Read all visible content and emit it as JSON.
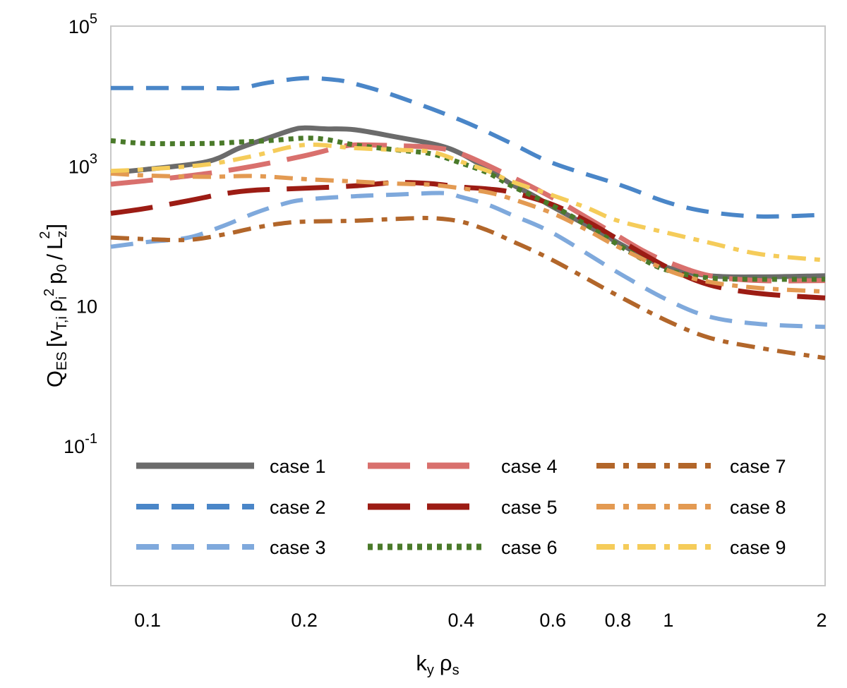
{
  "chart_data": {
    "type": "line",
    "x_scale": "log",
    "y_scale": "log",
    "xlim": [
      0.085,
      2.0
    ],
    "ylim": [
      0.001,
      100000
    ],
    "xlabel": {
      "main": "k",
      "main_sub": "y",
      "second": "ρ",
      "second_sub": "s"
    },
    "ylabel": {
      "q": "Q",
      "q_sub": "ES",
      "v": "v",
      "v_sub": "T,i",
      "rho": "ρ",
      "rho_sub": "i",
      "rho_sup": "2",
      "p": "p",
      "p_sub": "0",
      "slash": "/",
      "L": "L",
      "L_sub": "z",
      "L_sup": "2"
    },
    "x_ticks": [
      {
        "value": 0.1,
        "label": "0.1"
      },
      {
        "value": 0.2,
        "label": "0.2"
      },
      {
        "value": 0.4,
        "label": "0.4"
      },
      {
        "value": 0.6,
        "label": "0.6"
      },
      {
        "value": 0.8,
        "label": "0.8"
      },
      {
        "value": 1.0,
        "label": "1"
      },
      {
        "value": 2.0,
        "label": "2"
      }
    ],
    "y_ticks": [
      {
        "value": 0.1,
        "base": "10",
        "exp": "-1"
      },
      {
        "value": 10,
        "base": "10",
        "exp": ""
      },
      {
        "value": 1000,
        "base": "10",
        "exp": "3"
      },
      {
        "value": 100000,
        "base": "10",
        "exp": "5"
      }
    ],
    "grid": false,
    "legend": "bottom-center",
    "series": [
      {
        "name": "case 1",
        "color": "#6b6b6b",
        "style": "solid",
        "x": [
          0.085,
          0.1,
          0.13,
          0.15,
          0.17,
          0.19,
          0.2,
          0.22,
          0.25,
          0.3,
          0.36,
          0.4,
          0.45,
          0.5,
          0.55,
          0.6,
          0.7,
          0.8,
          0.9,
          1.0,
          1.2,
          1.5,
          2.0
        ],
        "y": [
          800,
          900,
          1150,
          1800,
          2500,
          3300,
          3500,
          3400,
          3300,
          2600,
          2000,
          1500,
          900,
          550,
          380,
          260,
          140,
          80,
          50,
          35,
          27,
          26,
          27
        ]
      },
      {
        "name": "case 2",
        "color": "#4a86c8",
        "style": "dash",
        "x": [
          0.085,
          0.1,
          0.13,
          0.15,
          0.17,
          0.2,
          0.23,
          0.25,
          0.3,
          0.4,
          0.5,
          0.6,
          0.8,
          1.0,
          1.2,
          1.5,
          2.0
        ],
        "y": [
          13000,
          13000,
          13000,
          13000,
          15500,
          18000,
          17000,
          15000,
          10000,
          4500,
          2100,
          1100,
          550,
          300,
          220,
          190,
          200
        ]
      },
      {
        "name": "case 3",
        "color": "#7fa9dc",
        "style": "dash",
        "x": [
          0.085,
          0.1,
          0.12,
          0.14,
          0.16,
          0.18,
          0.2,
          0.25,
          0.3,
          0.37,
          0.4,
          0.45,
          0.5,
          0.6,
          0.8,
          1.0,
          1.2,
          1.5,
          2.0
        ],
        "y": [
          70,
          82,
          95,
          140,
          210,
          280,
          330,
          370,
          390,
          410,
          360,
          280,
          200,
          110,
          30,
          12,
          7,
          5.5,
          5
        ]
      },
      {
        "name": "case 4",
        "color": "#d9706d",
        "style": "longdash",
        "x": [
          0.085,
          0.1,
          0.13,
          0.16,
          0.2,
          0.23,
          0.25,
          0.3,
          0.35,
          0.4,
          0.5,
          0.6,
          0.7,
          0.8,
          0.9,
          1.0,
          1.2,
          1.5,
          2.0
        ],
        "y": [
          550,
          620,
          780,
          1000,
          1400,
          1800,
          2000,
          1950,
          1850,
          1500,
          700,
          350,
          180,
          100,
          60,
          42,
          27,
          23,
          23
        ]
      },
      {
        "name": "case 5",
        "color": "#9c1c14",
        "style": "longdash",
        "x": [
          0.085,
          0.1,
          0.12,
          0.14,
          0.16,
          0.2,
          0.25,
          0.3,
          0.35,
          0.4,
          0.45,
          0.5,
          0.6,
          0.7,
          0.8,
          1.0,
          1.2,
          1.5,
          2.0
        ],
        "y": [
          210,
          250,
          320,
          400,
          450,
          480,
          520,
          580,
          560,
          500,
          470,
          420,
          280,
          160,
          90,
          35,
          20,
          15,
          13
        ]
      },
      {
        "name": "case 6",
        "color": "#4a7a2a",
        "style": "dotted",
        "x": [
          0.085,
          0.1,
          0.13,
          0.15,
          0.17,
          0.2,
          0.22,
          0.25,
          0.3,
          0.35,
          0.4,
          0.45,
          0.5,
          0.6,
          0.7,
          0.8,
          0.9,
          1.0,
          1.2,
          1.5,
          2.0
        ],
        "y": [
          2300,
          2100,
          2100,
          2200,
          2300,
          2500,
          2400,
          2000,
          1700,
          1500,
          1100,
          800,
          520,
          270,
          140,
          75,
          45,
          32,
          25,
          24,
          24
        ]
      },
      {
        "name": "case 7",
        "color": "#b2662a",
        "style": "dashdot",
        "x": [
          0.085,
          0.1,
          0.12,
          0.14,
          0.16,
          0.18,
          0.2,
          0.25,
          0.3,
          0.35,
          0.4,
          0.45,
          0.5,
          0.6,
          0.8,
          1.0,
          1.2,
          1.5,
          2.0
        ],
        "y": [
          95,
          90,
          88,
          105,
          130,
          150,
          160,
          165,
          175,
          180,
          160,
          120,
          85,
          45,
          14,
          6,
          3.5,
          2.5,
          1.8
        ]
      },
      {
        "name": "case 8",
        "color": "#e39a52",
        "style": "dashdot",
        "x": [
          0.085,
          0.1,
          0.13,
          0.16,
          0.2,
          0.25,
          0.3,
          0.35,
          0.4,
          0.45,
          0.5,
          0.6,
          0.7,
          0.8,
          1.0,
          1.2,
          1.5,
          2.0
        ],
        "y": [
          780,
          730,
          700,
          720,
          650,
          600,
          560,
          540,
          480,
          420,
          340,
          210,
          120,
          70,
          32,
          22,
          18,
          16
        ]
      },
      {
        "name": "case 9",
        "color": "#f5cc5a",
        "style": "dashdot",
        "x": [
          0.085,
          0.1,
          0.13,
          0.16,
          0.2,
          0.25,
          0.3,
          0.35,
          0.4,
          0.45,
          0.5,
          0.6,
          0.7,
          0.8,
          1.0,
          1.2,
          1.5,
          2.0
        ],
        "y": [
          850,
          900,
          1050,
          1400,
          2000,
          1800,
          1700,
          1600,
          1150,
          850,
          600,
          380,
          250,
          165,
          110,
          80,
          55,
          45
        ]
      }
    ]
  }
}
